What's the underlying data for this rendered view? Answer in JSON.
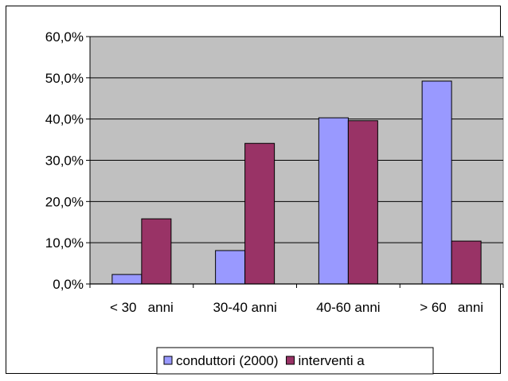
{
  "chart_data": {
    "type": "bar",
    "title": "",
    "xlabel": "",
    "ylabel": "",
    "categories": [
      "< 30   anni",
      "30-40 anni",
      "40-60 anni",
      "> 60   anni"
    ],
    "series": [
      {
        "name": "conduttori (2000)",
        "values": [
          2.3,
          8.1,
          40.3,
          49.2
        ],
        "color": "#9999ff"
      },
      {
        "name": "interventi a",
        "values": [
          15.8,
          34.1,
          39.6,
          10.4
        ],
        "color": "#993366"
      }
    ],
    "ylim": [
      0,
      60
    ],
    "y_ticks": [
      "0,0%",
      "10,0%",
      "20,0%",
      "30,0%",
      "40,0%",
      "50,0%",
      "60,0%"
    ],
    "grid": true,
    "plot_background": "#c0c0c0",
    "legend_position": "bottom"
  }
}
